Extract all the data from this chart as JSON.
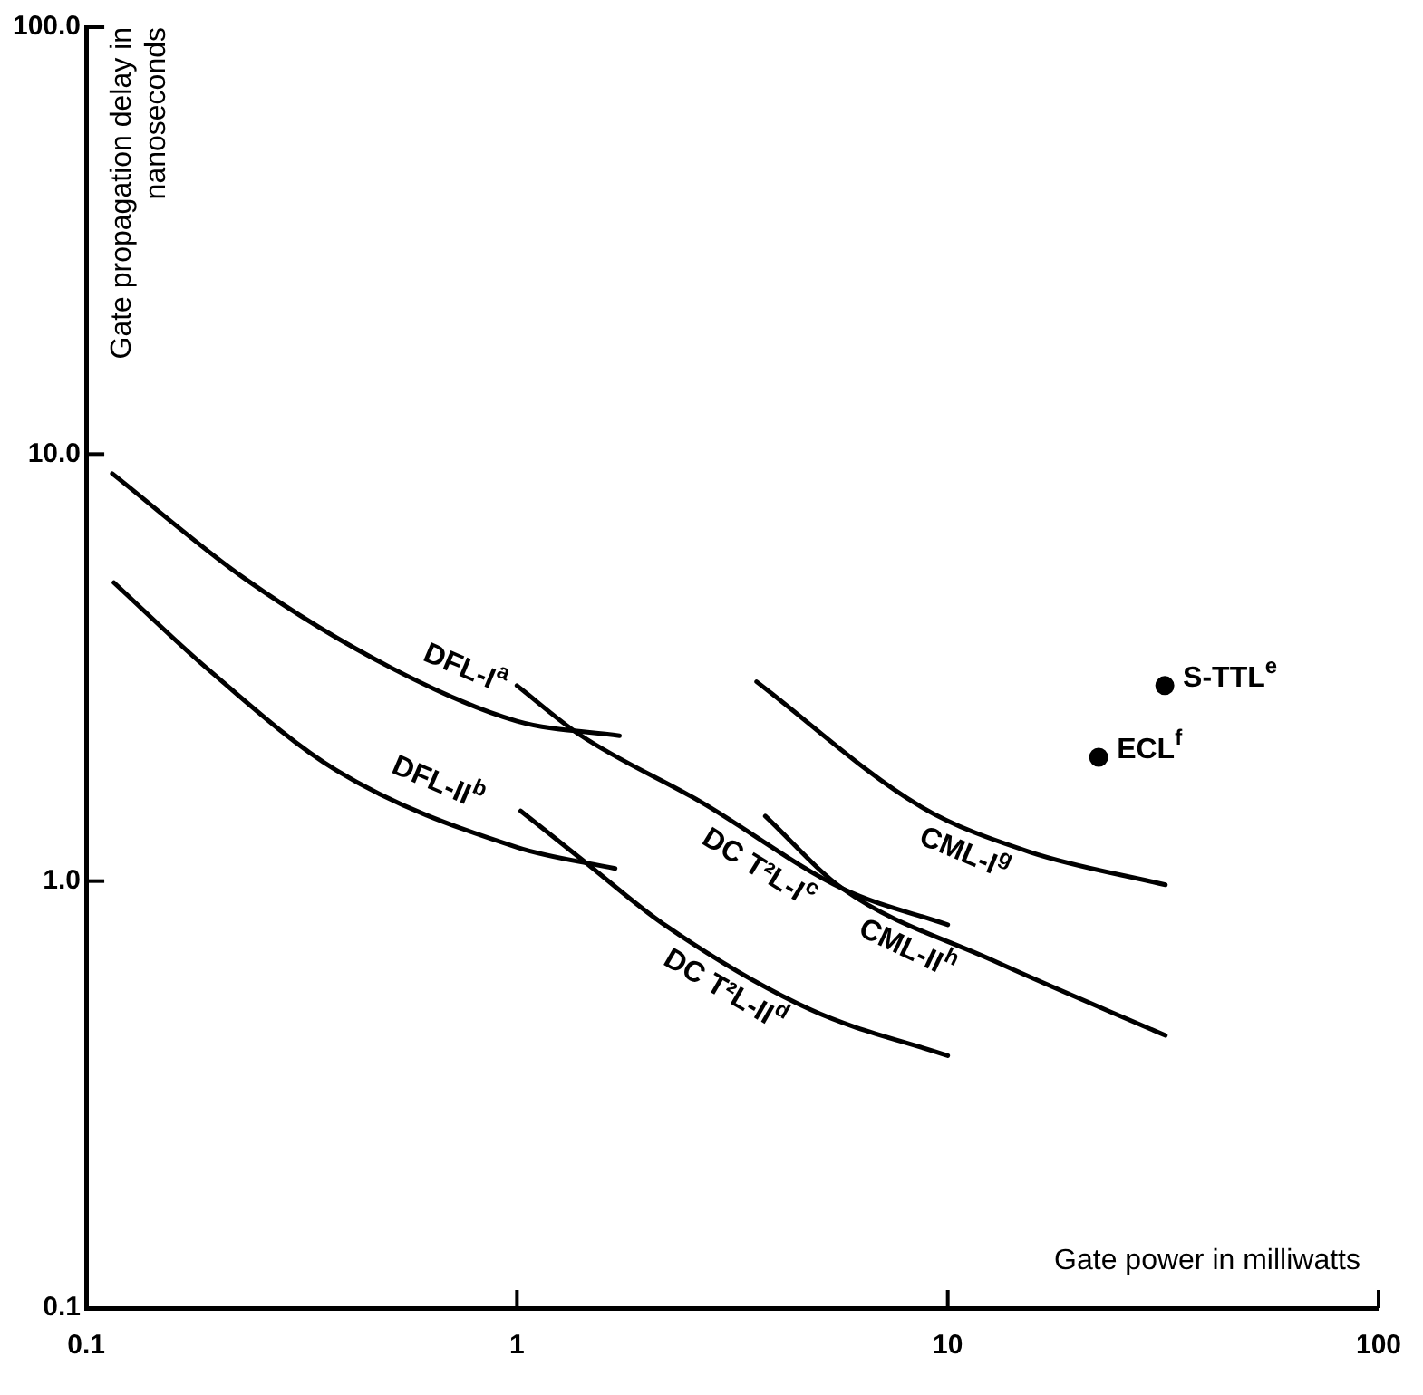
{
  "chart_data": {
    "type": "line",
    "xlabel": "Gate power in milliwatts",
    "ylabel": "Gate propagation delay in nanoseconds",
    "log": "xy",
    "grid": false,
    "legend": false,
    "line_style": "solid",
    "marker": "none",
    "xlim": [
      0.1,
      100
    ],
    "xticks": [
      0.1,
      1,
      10,
      100
    ],
    "ylim": [
      0.1,
      100
    ],
    "yticks": [
      {
        "value": 0.1,
        "label": "0.1"
      },
      {
        "value": 1,
        "label": "1.0"
      },
      {
        "value": 10,
        "label": "10.0"
      },
      {
        "value": 100,
        "label": "100.0"
      }
    ],
    "series": [
      {
        "name": "DFL-I$^{a}$",
        "color": "#000000",
        "x": [
          0.115,
          0.234,
          0.51,
          1.0,
          1.73
        ],
        "values": [
          9.0,
          5.1,
          3.16,
          2.37,
          2.19
        ]
      },
      {
        "name": "DFL-II$^{b}$",
        "color": "#000000",
        "x": [
          0.116,
          0.19,
          0.38,
          1.0,
          1.69
        ],
        "values": [
          5.0,
          3.16,
          1.82,
          1.2,
          1.07
        ]
      },
      {
        "name": "DC T²L-I$^{c}$",
        "color": "#000000",
        "x": [
          1.0,
          1.4,
          2.68,
          5.7,
          10.0
        ],
        "values": [
          2.87,
          2.2,
          1.53,
          0.96,
          0.79
        ]
      },
      {
        "name": "DC T²L-II$^{d}$",
        "color": "#000000",
        "x": [
          1.02,
          1.42,
          2.2,
          4.8,
          10.0
        ],
        "values": [
          1.46,
          1.12,
          0.79,
          0.5,
          0.39
        ]
      },
      {
        "name": "CML-I$^{g}$",
        "color": "#000000",
        "x": [
          3.6,
          8.6,
          15.5,
          32
        ],
        "values": [
          2.93,
          1.5,
          1.17,
          0.98
        ]
      },
      {
        "name": "CML-II$^{h}$",
        "color": "#000000",
        "x": [
          3.77,
          5.7,
          12.8,
          32
        ],
        "values": [
          1.42,
          0.96,
          0.65,
          0.435
        ]
      },
      {
        "name": "S-TTL$^{e}$",
        "type": "scatter",
        "marker": "circle",
        "color": "#000000",
        "x": [
          31.9
        ],
        "values": [
          2.87
        ]
      },
      {
        "name": "ECL$^{f}$",
        "type": "scatter",
        "marker": "circle",
        "color": "#000000",
        "x": [
          22.4
        ],
        "values": [
          1.95
        ]
      }
    ]
  }
}
